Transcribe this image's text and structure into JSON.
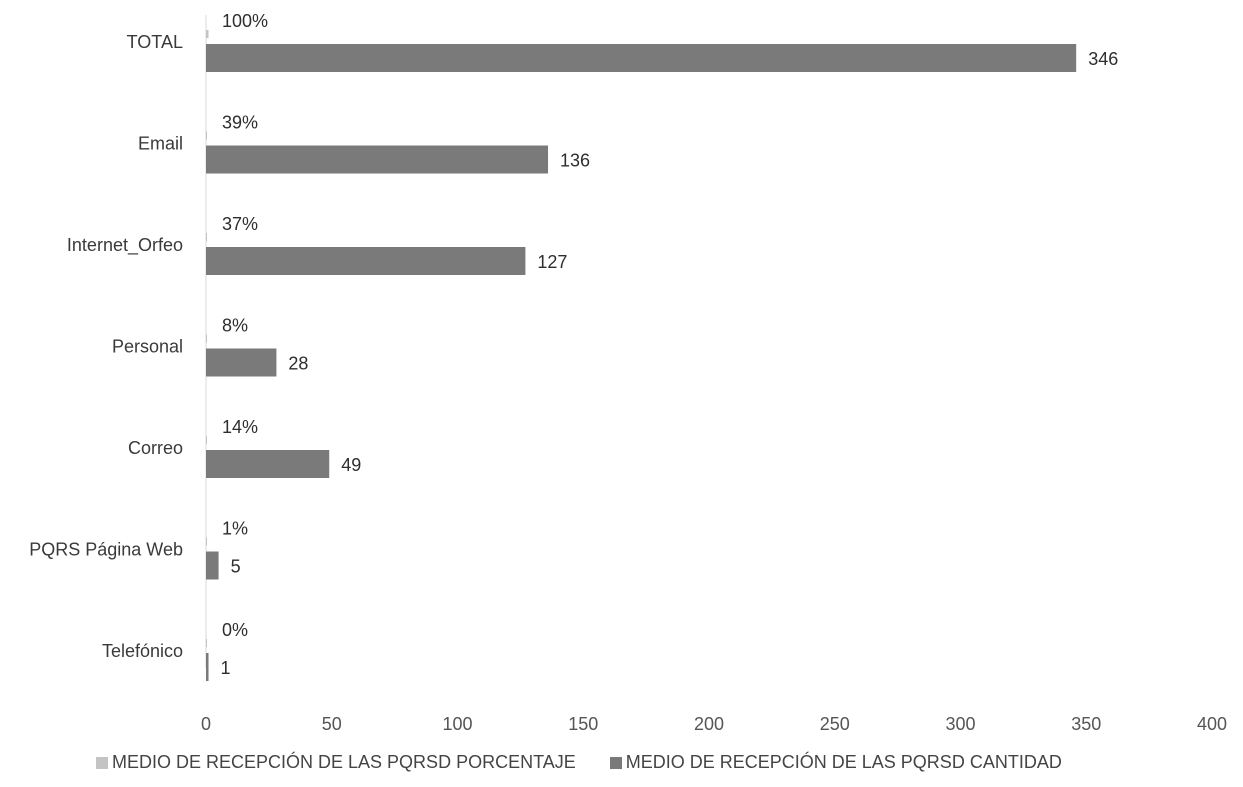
{
  "chart_data": {
    "type": "bar",
    "orientation": "horizontal",
    "categories": [
      "TOTAL",
      "Email",
      "Internet_Orfeo",
      "Personal",
      "Correo",
      "PQRS Página Web",
      "Telefónico"
    ],
    "series": [
      {
        "name": "MEDIO DE RECEPCIÓN DE LAS PQRSD PORCENTAJE",
        "values": [
          1.0,
          0.39,
          0.37,
          0.08,
          0.14,
          0.01,
          0.0
        ],
        "labels": [
          "100%",
          "39%",
          "37%",
          "8%",
          "14%",
          "1%",
          "0%"
        ],
        "color": "#c4c4c4"
      },
      {
        "name": "MEDIO DE RECEPCIÓN DE LAS PQRSD CANTIDAD",
        "values": [
          346,
          136,
          127,
          28,
          49,
          5,
          1
        ],
        "labels": [
          "346",
          "136",
          "127",
          "28",
          "49",
          "5",
          "1"
        ],
        "color": "#7a7a7a"
      }
    ],
    "xlim": [
      0,
      400
    ],
    "xticks": [
      "0",
      "50",
      "100",
      "150",
      "200",
      "250",
      "300",
      "350",
      "400"
    ],
    "grid": false,
    "legend_position": "bottom"
  }
}
